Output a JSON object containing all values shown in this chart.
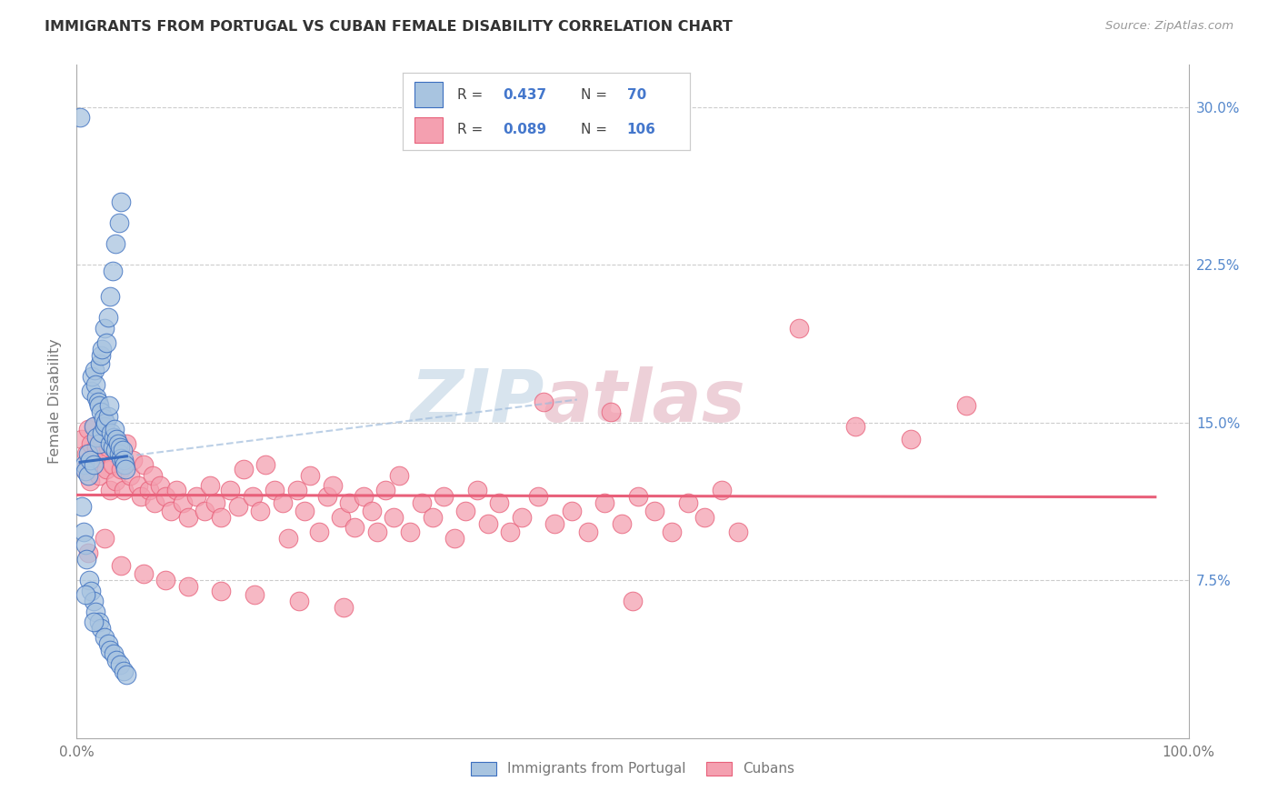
{
  "title": "IMMIGRANTS FROM PORTUGAL VS CUBAN FEMALE DISABILITY CORRELATION CHART",
  "source": "Source: ZipAtlas.com",
  "ylabel": "Female Disability",
  "xlim": [
    0.0,
    1.0
  ],
  "ylim": [
    0.0,
    0.32
  ],
  "ytick_vals": [
    0.075,
    0.15,
    0.225,
    0.3
  ],
  "ytick_labels": [
    "7.5%",
    "15.0%",
    "22.5%",
    "30.0%"
  ],
  "legend_r1": "0.437",
  "legend_n1": "70",
  "legend_r2": "0.089",
  "legend_n2": "106",
  "color_blue": "#A8C4E0",
  "color_pink": "#F4A0B0",
  "line_blue": "#3B6EBF",
  "line_pink": "#E8607A",
  "dash_blue": "#A0BCDC",
  "watermark_color": "#D8E4EE",
  "watermark_pink": "#EDD0D8",
  "background_color": "#FFFFFF",
  "grid_color": "#CCCCCC",
  "title_color": "#333333",
  "source_color": "#999999",
  "axis_color": "#AAAAAA",
  "tick_color": "#777777",
  "right_tick_color": "#5588CC",
  "legend_text_color": "#444444",
  "legend_val_color": "#4477CC"
}
